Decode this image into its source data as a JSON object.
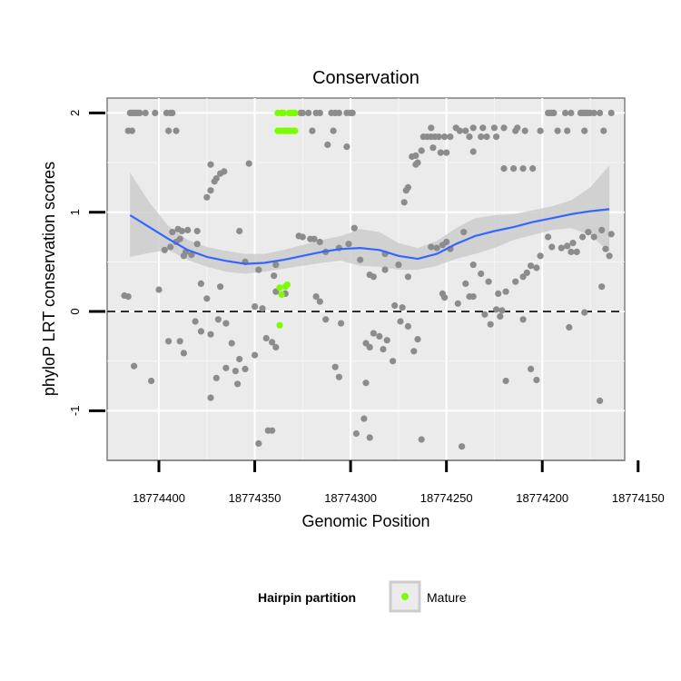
{
  "chart_data": {
    "type": "scatter",
    "title": "Conservation",
    "xlabel": "Genomic Position",
    "ylabel": "phyloP LRT conservation scores",
    "x_reversed": true,
    "xlim": [
      18774427,
      18774157
    ],
    "ylim": [
      -1.5,
      2.15
    ],
    "x_ticks": [
      18774400,
      18774350,
      18774300,
      18774250,
      18774200,
      18774150
    ],
    "x_tick_labels": [
      "18774400",
      "18774350",
      "18774300",
      "18774250",
      "18774200",
      "18774150"
    ],
    "y_ticks": [
      -1,
      0,
      1,
      2
    ],
    "y_tick_labels": [
      "-1",
      "0",
      "1",
      "2"
    ],
    "grid": true,
    "reference_line": {
      "y": 0,
      "style": "dashed"
    },
    "legend": {
      "title": "Hairpin partition",
      "position": "bottom",
      "entries": [
        "Mature"
      ]
    },
    "colors": {
      "other": "#8c8c8c",
      "mature": "#7cfc00",
      "smooth": "#3366ff",
      "band": "#cccccc",
      "panel": "#ebebeb"
    },
    "series": [
      {
        "name": "Mature",
        "points": [
          [
            18774338,
            2.0
          ],
          [
            18774336,
            2.0
          ],
          [
            18774335,
            2.0
          ],
          [
            18774332,
            2.0
          ],
          [
            18774331,
            2.0
          ],
          [
            18774330,
            2.0
          ],
          [
            18774329,
            2.0
          ],
          [
            18774338,
            1.82
          ],
          [
            18774337,
            1.82
          ],
          [
            18774336,
            1.82
          ],
          [
            18774335,
            1.82
          ],
          [
            18774334,
            1.82
          ],
          [
            18774333,
            1.82
          ],
          [
            18774332,
            1.82
          ],
          [
            18774331,
            1.82
          ],
          [
            18774330,
            1.82
          ],
          [
            18774329,
            1.82
          ],
          [
            18774333,
            0.27
          ],
          [
            18774334,
            0.25
          ],
          [
            18774337,
            0.24
          ],
          [
            18774336,
            0.17
          ],
          [
            18774337,
            -0.14
          ]
        ]
      },
      {
        "name": "",
        "points": [
          [
            18774415,
            2.0
          ],
          [
            18774414,
            2.0
          ],
          [
            18774413,
            2.0
          ],
          [
            18774412,
            2.0
          ],
          [
            18774411,
            2.0
          ],
          [
            18774410,
            2.0
          ],
          [
            18774407,
            2.0
          ],
          [
            18774402,
            2.0
          ],
          [
            18774396,
            2.0
          ],
          [
            18774394,
            2.0
          ],
          [
            18774393,
            2.0
          ],
          [
            18774326,
            2.0
          ],
          [
            18774325,
            2.0
          ],
          [
            18774322,
            2.0
          ],
          [
            18774318,
            2.0
          ],
          [
            18774316,
            2.0
          ],
          [
            18774310,
            2.0
          ],
          [
            18774308,
            2.0
          ],
          [
            18774306,
            2.0
          ],
          [
            18774302,
            2.0
          ],
          [
            18774300,
            2.0
          ],
          [
            18774299,
            2.0
          ],
          [
            18774197,
            2.0
          ],
          [
            18774196,
            2.0
          ],
          [
            18774195,
            2.0
          ],
          [
            18774194,
            2.0
          ],
          [
            18774188,
            2.0
          ],
          [
            18774185,
            2.0
          ],
          [
            18774180,
            2.0
          ],
          [
            18774179,
            2.0
          ],
          [
            18774178,
            2.0
          ],
          [
            18774177,
            2.0
          ],
          [
            18774176,
            2.0
          ],
          [
            18774175,
            2.0
          ],
          [
            18774173,
            2.0
          ],
          [
            18774170,
            2.0
          ],
          [
            18774164,
            2.0
          ],
          [
            18774416,
            1.82
          ],
          [
            18774414,
            1.82
          ],
          [
            18774395,
            1.82
          ],
          [
            18774391,
            1.82
          ],
          [
            18774320,
            1.82
          ],
          [
            18774309,
            1.82
          ],
          [
            18774243,
            1.82
          ],
          [
            18774240,
            1.82
          ],
          [
            18774214,
            1.82
          ],
          [
            18774209,
            1.82
          ],
          [
            18774201,
            1.82
          ],
          [
            18774192,
            1.82
          ],
          [
            18774187,
            1.82
          ],
          [
            18774178,
            1.82
          ],
          [
            18774168,
            1.82
          ],
          [
            18774258,
            1.85
          ],
          [
            18774245,
            1.85
          ],
          [
            18774236,
            1.85
          ],
          [
            18774231,
            1.85
          ],
          [
            18774225,
            1.85
          ],
          [
            18774220,
            1.85
          ],
          [
            18774213,
            1.85
          ],
          [
            18774262,
            1.76
          ],
          [
            18774260,
            1.76
          ],
          [
            18774258,
            1.76
          ],
          [
            18774256,
            1.76
          ],
          [
            18774254,
            1.76
          ],
          [
            18774251,
            1.76
          ],
          [
            18774248,
            1.76
          ],
          [
            18774238,
            1.76
          ],
          [
            18774232,
            1.76
          ],
          [
            18774229,
            1.76
          ],
          [
            18774224,
            1.76
          ],
          [
            18774312,
            1.68
          ],
          [
            18774302,
            1.66
          ],
          [
            18774257,
            1.65
          ],
          [
            18774263,
            1.62
          ],
          [
            18774253,
            1.6
          ],
          [
            18774250,
            1.6
          ],
          [
            18774236,
            1.61
          ],
          [
            18774266,
            1.57
          ],
          [
            18774268,
            1.56
          ],
          [
            18774265,
            1.5
          ],
          [
            18774266,
            1.48
          ],
          [
            18774220,
            1.44
          ],
          [
            18774215,
            1.44
          ],
          [
            18774210,
            1.44
          ],
          [
            18774205,
            1.44
          ],
          [
            18774353,
            1.49
          ],
          [
            18774373,
            1.48
          ],
          [
            18774366,
            1.41
          ],
          [
            18774368,
            1.39
          ],
          [
            18774370,
            1.34
          ],
          [
            18774371,
            1.31
          ],
          [
            18774373,
            1.22
          ],
          [
            18774375,
            1.15
          ],
          [
            18774270,
            1.25
          ],
          [
            18774271,
            1.22
          ],
          [
            18774272,
            1.1
          ],
          [
            18774390,
            0.83
          ],
          [
            18774388,
            0.81
          ],
          [
            18774385,
            0.82
          ],
          [
            18774393,
            0.8
          ],
          [
            18774389,
            0.73
          ],
          [
            18774391,
            0.7
          ],
          [
            18774397,
            0.62
          ],
          [
            18774394,
            0.65
          ],
          [
            18774386,
            0.6
          ],
          [
            18774383,
            0.57
          ],
          [
            18774387,
            0.56
          ],
          [
            18774380,
            0.68
          ],
          [
            18774358,
            0.81
          ],
          [
            18774380,
            0.81
          ],
          [
            18774355,
            0.5
          ],
          [
            18774348,
            0.42
          ],
          [
            18774339,
            0.47
          ],
          [
            18774340,
            0.36
          ],
          [
            18774327,
            0.76
          ],
          [
            18774325,
            0.75
          ],
          [
            18774321,
            0.73
          ],
          [
            18774319,
            0.73
          ],
          [
            18774316,
            0.7
          ],
          [
            18774313,
            0.6
          ],
          [
            18774306,
            0.64
          ],
          [
            18774301,
            0.68
          ],
          [
            18774298,
            0.84
          ],
          [
            18774295,
            0.52
          ],
          [
            18774290,
            0.37
          ],
          [
            18774288,
            0.35
          ],
          [
            18774282,
            0.58
          ],
          [
            18774275,
            0.47
          ],
          [
            18774270,
            0.35
          ],
          [
            18774258,
            0.65
          ],
          [
            18774255,
            0.64
          ],
          [
            18774252,
            0.67
          ],
          [
            18774250,
            0.7
          ],
          [
            18774248,
            0.63
          ],
          [
            18774241,
            0.8
          ],
          [
            18774236,
            0.47
          ],
          [
            18774232,
            0.38
          ],
          [
            18774228,
            0.3
          ],
          [
            18774223,
            0.18
          ],
          [
            18774219,
            0.2
          ],
          [
            18774214,
            0.3
          ],
          [
            18774210,
            0.35
          ],
          [
            18774208,
            0.39
          ],
          [
            18774206,
            0.46
          ],
          [
            18774203,
            0.44
          ],
          [
            18774201,
            0.56
          ],
          [
            18774197,
            0.75
          ],
          [
            18774195,
            0.65
          ],
          [
            18774190,
            0.64
          ],
          [
            18774187,
            0.66
          ],
          [
            18774185,
            0.6
          ],
          [
            18774184,
            0.69
          ],
          [
            18774182,
            0.6
          ],
          [
            18774179,
            0.75
          ],
          [
            18774176,
            0.8
          ],
          [
            18774173,
            0.75
          ],
          [
            18774169,
            0.82
          ],
          [
            18774167,
            0.63
          ],
          [
            18774165,
            0.56
          ],
          [
            18774164,
            0.78
          ],
          [
            18774418,
            0.16
          ],
          [
            18774416,
            0.15
          ],
          [
            18774400,
            0.22
          ],
          [
            18774378,
            0.28
          ],
          [
            18774375,
            0.13
          ],
          [
            18774368,
            0.25
          ],
          [
            18774350,
            0.05
          ],
          [
            18774346,
            0.03
          ],
          [
            18774339,
            0.2
          ],
          [
            18774334,
            0.18
          ],
          [
            18774318,
            0.15
          ],
          [
            18774316,
            0.1
          ],
          [
            18774282,
            0.42
          ],
          [
            18774277,
            0.06
          ],
          [
            18774273,
            0.04
          ],
          [
            18774252,
            0.18
          ],
          [
            18774251,
            0.14
          ],
          [
            18774244,
            0.08
          ],
          [
            18774240,
            0.28
          ],
          [
            18774238,
            0.15
          ],
          [
            18774236,
            0.15
          ],
          [
            18774224,
            0.02
          ],
          [
            18774221,
            0.01
          ],
          [
            18774169,
            0.25
          ],
          [
            18774178,
            -0.01
          ],
          [
            18774395,
            -0.3
          ],
          [
            18774389,
            -0.3
          ],
          [
            18774387,
            -0.42
          ],
          [
            18774381,
            -0.1
          ],
          [
            18774378,
            -0.2
          ],
          [
            18774373,
            -0.23
          ],
          [
            18774369,
            -0.08
          ],
          [
            18774365,
            -0.12
          ],
          [
            18774362,
            -0.32
          ],
          [
            18774358,
            -0.48
          ],
          [
            18774355,
            -0.58
          ],
          [
            18774350,
            -0.44
          ],
          [
            18774344,
            -0.27
          ],
          [
            18774341,
            -0.31
          ],
          [
            18774339,
            -0.36
          ],
          [
            18774313,
            -0.08
          ],
          [
            18774305,
            -0.12
          ],
          [
            18774292,
            -0.32
          ],
          [
            18774290,
            -0.36
          ],
          [
            18774288,
            -0.22
          ],
          [
            18774285,
            -0.25
          ],
          [
            18774283,
            -0.38
          ],
          [
            18774281,
            -0.29
          ],
          [
            18774278,
            -0.5
          ],
          [
            18774274,
            -0.1
          ],
          [
            18774270,
            -0.15
          ],
          [
            18774267,
            -0.4
          ],
          [
            18774265,
            -0.28
          ],
          [
            18774230,
            -0.03
          ],
          [
            18774227,
            -0.13
          ],
          [
            18774222,
            -0.05
          ],
          [
            18774210,
            -0.08
          ],
          [
            18774186,
            -0.16
          ],
          [
            18774413,
            -0.55
          ],
          [
            18774404,
            -0.7
          ],
          [
            18774373,
            -0.87
          ],
          [
            18774370,
            -0.67
          ],
          [
            18774365,
            -0.57
          ],
          [
            18774360,
            -0.6
          ],
          [
            18774359,
            -0.73
          ],
          [
            18774308,
            -0.56
          ],
          [
            18774306,
            -0.66
          ],
          [
            18774292,
            -0.72
          ],
          [
            18774219,
            -0.7
          ],
          [
            18774206,
            -0.58
          ],
          [
            18774203,
            -0.69
          ],
          [
            18774170,
            -0.9
          ],
          [
            18774343,
            -1.2
          ],
          [
            18774341,
            -1.2
          ],
          [
            18774348,
            -1.33
          ],
          [
            18774293,
            -1.08
          ],
          [
            18774297,
            -1.23
          ],
          [
            18774290,
            -1.27
          ],
          [
            18774263,
            -1.29
          ],
          [
            18774242,
            -1.36
          ]
        ]
      }
    ],
    "smooth_line": {
      "x": [
        18774415,
        18774405,
        18774395,
        18774385,
        18774375,
        18774365,
        18774355,
        18774345,
        18774335,
        18774325,
        18774315,
        18774305,
        18774295,
        18774285,
        18774275,
        18774265,
        18774255,
        18774245,
        18774235,
        18774225,
        18774215,
        18774205,
        18774195,
        18774185,
        18774175,
        18774165
      ],
      "y": [
        0.97,
        0.85,
        0.73,
        0.62,
        0.55,
        0.51,
        0.48,
        0.49,
        0.52,
        0.56,
        0.6,
        0.63,
        0.64,
        0.62,
        0.56,
        0.53,
        0.58,
        0.68,
        0.76,
        0.81,
        0.85,
        0.9,
        0.94,
        0.98,
        1.01,
        1.03
      ],
      "upper": [
        1.4,
        1.1,
        0.86,
        0.72,
        0.65,
        0.61,
        0.58,
        0.58,
        0.62,
        0.67,
        0.72,
        0.76,
        0.83,
        0.8,
        0.69,
        0.64,
        0.71,
        0.84,
        0.94,
        0.97,
        0.98,
        1.02,
        1.06,
        1.12,
        1.25,
        1.47
      ],
      "lower": [
        0.55,
        0.59,
        0.62,
        0.52,
        0.45,
        0.4,
        0.38,
        0.4,
        0.43,
        0.46,
        0.49,
        0.51,
        0.46,
        0.45,
        0.42,
        0.42,
        0.46,
        0.53,
        0.58,
        0.64,
        0.72,
        0.77,
        0.82,
        0.84,
        0.77,
        0.6
      ]
    }
  }
}
